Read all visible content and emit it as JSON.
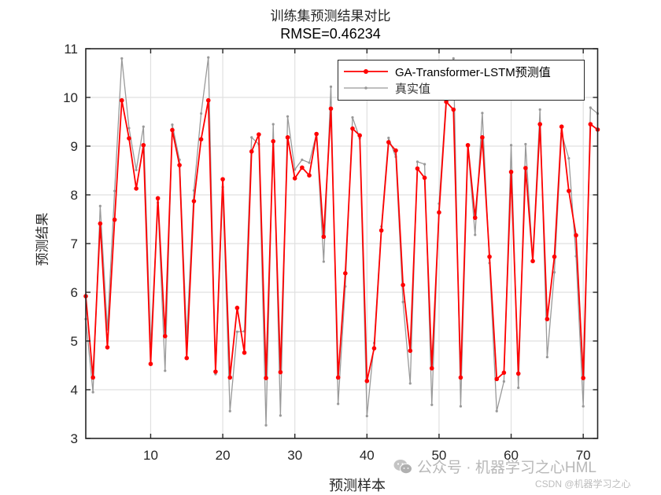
{
  "title": "训练集预测结果对比",
  "subtitle": "RMSE=0.46234",
  "xlabel": "预测样本",
  "ylabel": "预测结果",
  "legend": {
    "items": [
      {
        "label": "GA-Transformer-LSTM预测值",
        "color": "#ff0000"
      },
      {
        "label": "真实值",
        "color": "#999999"
      }
    ]
  },
  "watermark": {
    "text": "公众号 · 机器学习之心HML",
    "csdn": "CSDN @机器学习之心"
  },
  "colors": {
    "predicted": "#ff0000",
    "actual": "#999999",
    "axis": "#262626",
    "grid": "#e0e0e0"
  },
  "chart_data": {
    "type": "line",
    "title": "训练集预测结果对比 RMSE=0.46234",
    "xlabel": "预测样本",
    "ylabel": "预测结果",
    "xlim": [
      1,
      72
    ],
    "ylim": [
      3,
      11
    ],
    "xticks": [
      10,
      20,
      30,
      40,
      50,
      60,
      70
    ],
    "yticks": [
      3,
      4,
      5,
      6,
      7,
      8,
      9,
      10,
      11
    ],
    "grid": true,
    "legend_position": "upper right",
    "x": [
      1,
      2,
      3,
      4,
      5,
      6,
      7,
      8,
      9,
      10,
      11,
      12,
      13,
      14,
      15,
      16,
      17,
      18,
      19,
      20,
      21,
      22,
      23,
      24,
      25,
      26,
      27,
      28,
      29,
      30,
      31,
      32,
      33,
      34,
      35,
      36,
      37,
      38,
      39,
      40,
      41,
      42,
      43,
      44,
      45,
      46,
      47,
      48,
      49,
      50,
      51,
      52,
      53,
      54,
      55,
      56,
      57,
      58,
      59,
      60,
      61,
      62,
      63,
      64,
      65,
      66,
      67,
      68,
      69,
      70,
      71,
      72
    ],
    "series": [
      {
        "name": "GA-Transformer-LSTM预测值",
        "color": "#ff0000",
        "marker": "dot",
        "values": [
          5.92,
          4.25,
          7.41,
          4.87,
          7.49,
          9.94,
          9.16,
          8.13,
          9.02,
          4.53,
          7.93,
          5.1,
          9.33,
          8.61,
          4.65,
          7.87,
          9.14,
          9.94,
          4.37,
          8.32,
          4.25,
          5.68,
          4.76,
          8.89,
          9.24,
          4.24,
          9.1,
          4.36,
          9.18,
          8.34,
          8.56,
          8.4,
          9.25,
          7.14,
          9.77,
          4.25,
          6.39,
          9.36,
          9.22,
          4.18,
          4.85,
          7.27,
          9.08,
          8.91,
          6.15,
          4.8,
          8.54,
          8.35,
          4.44,
          7.64,
          9.91,
          9.75,
          4.25,
          9.02,
          7.53,
          9.18,
          6.73,
          4.22,
          4.35,
          8.47,
          4.33,
          8.55,
          6.64,
          9.45,
          5.45,
          6.73,
          9.4,
          8.08,
          7.17,
          4.24,
          9.45,
          9.34
        ]
      },
      {
        "name": "真实值",
        "color": "#999999",
        "marker": "small-dot",
        "values": [
          5.45,
          3.95,
          7.77,
          5.24,
          8.08,
          10.8,
          9.37,
          8.51,
          9.4,
          4.88,
          7.84,
          4.39,
          9.44,
          8.72,
          5.07,
          8.09,
          9.67,
          10.82,
          4.32,
          8.16,
          3.56,
          5.19,
          5.2,
          9.18,
          9.04,
          3.27,
          9.45,
          3.47,
          9.61,
          8.52,
          8.72,
          8.66,
          9.26,
          6.63,
          10.22,
          3.71,
          6.12,
          9.59,
          9.16,
          3.46,
          4.96,
          7.35,
          9.17,
          8.78,
          5.8,
          4.13,
          8.68,
          8.63,
          3.69,
          7.82,
          10.0,
          10.8,
          3.66,
          8.99,
          7.18,
          9.68,
          6.6,
          3.56,
          4.17,
          9.02,
          4.04,
          9.04,
          6.66,
          9.75,
          4.67,
          6.41,
          9.26,
          8.75,
          6.74,
          3.66,
          9.79,
          9.67
        ]
      }
    ]
  }
}
